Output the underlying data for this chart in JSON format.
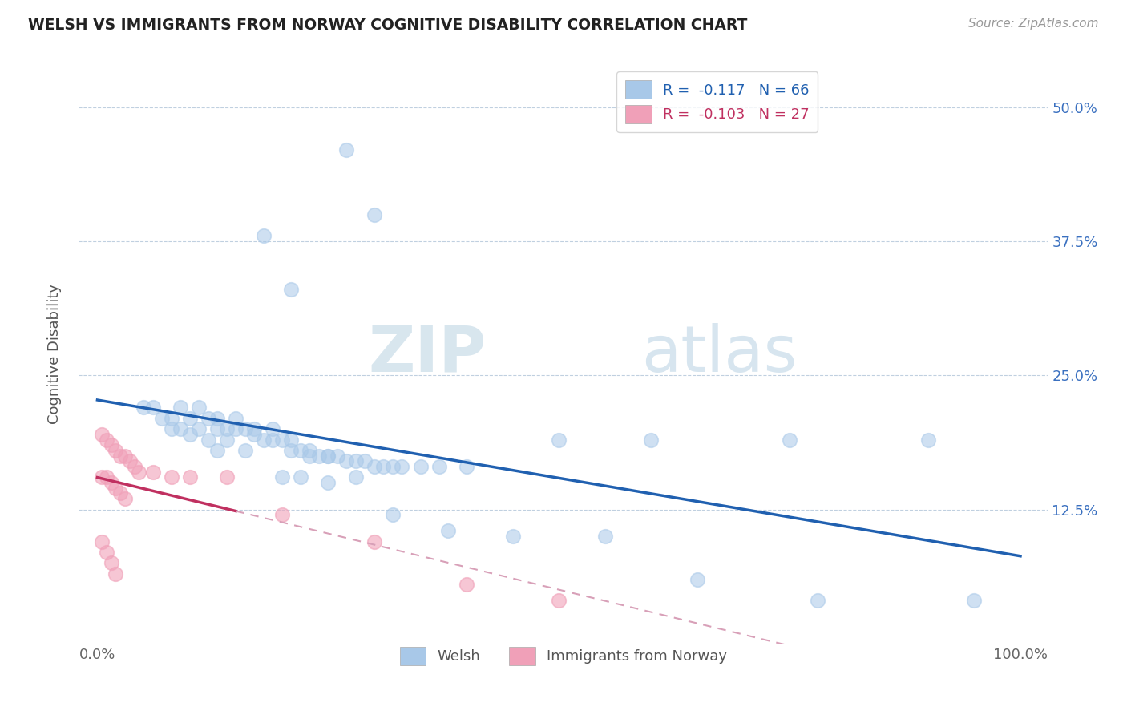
{
  "title": "WELSH VS IMMIGRANTS FROM NORWAY COGNITIVE DISABILITY CORRELATION CHART",
  "source_text": "Source: ZipAtlas.com",
  "ylabel": "Cognitive Disability",
  "y_tick_labels": [
    "12.5%",
    "25.0%",
    "37.5%",
    "50.0%"
  ],
  "y_ticks": [
    0.125,
    0.25,
    0.375,
    0.5
  ],
  "legend_labels": [
    "Welsh",
    "Immigrants from Norway"
  ],
  "welsh_color": "#a8c8e8",
  "norway_color": "#f0a0b8",
  "welsh_line_color": "#2060b0",
  "norway_line_color": "#c03060",
  "norway_dashed_color": "#d8a0b8",
  "welsh_R": -0.117,
  "welsh_N": 66,
  "norway_R": -0.103,
  "norway_N": 27,
  "welsh_x": [
    0.27,
    0.3,
    0.18,
    0.21,
    0.05,
    0.06,
    0.07,
    0.08,
    0.09,
    0.1,
    0.11,
    0.12,
    0.13,
    0.14,
    0.15,
    0.16,
    0.17,
    0.18,
    0.19,
    0.2,
    0.21,
    0.22,
    0.23,
    0.24,
    0.25,
    0.26,
    0.27,
    0.28,
    0.29,
    0.3,
    0.31,
    0.32,
    0.33,
    0.35,
    0.37,
    0.4,
    0.13,
    0.15,
    0.17,
    0.19,
    0.21,
    0.23,
    0.25,
    0.1,
    0.12,
    0.14,
    0.16,
    0.08,
    0.09,
    0.11,
    0.13,
    0.5,
    0.55,
    0.6,
    0.65,
    0.75,
    0.78,
    0.9,
    0.95,
    0.2,
    0.22,
    0.25,
    0.28,
    0.32,
    0.38,
    0.45
  ],
  "welsh_y": [
    0.46,
    0.4,
    0.38,
    0.33,
    0.22,
    0.22,
    0.21,
    0.21,
    0.22,
    0.21,
    0.22,
    0.21,
    0.2,
    0.2,
    0.2,
    0.2,
    0.195,
    0.19,
    0.19,
    0.19,
    0.18,
    0.18,
    0.175,
    0.175,
    0.175,
    0.175,
    0.17,
    0.17,
    0.17,
    0.165,
    0.165,
    0.165,
    0.165,
    0.165,
    0.165,
    0.165,
    0.21,
    0.21,
    0.2,
    0.2,
    0.19,
    0.18,
    0.175,
    0.195,
    0.19,
    0.19,
    0.18,
    0.2,
    0.2,
    0.2,
    0.18,
    0.19,
    0.1,
    0.19,
    0.06,
    0.19,
    0.04,
    0.19,
    0.04,
    0.155,
    0.155,
    0.15,
    0.155,
    0.12,
    0.105,
    0.1
  ],
  "norway_x": [
    0.005,
    0.01,
    0.015,
    0.02,
    0.025,
    0.03,
    0.035,
    0.04,
    0.045,
    0.005,
    0.01,
    0.015,
    0.02,
    0.025,
    0.03,
    0.005,
    0.01,
    0.015,
    0.02,
    0.06,
    0.08,
    0.1,
    0.14,
    0.2,
    0.3,
    0.4,
    0.5
  ],
  "norway_y": [
    0.195,
    0.19,
    0.185,
    0.18,
    0.175,
    0.175,
    0.17,
    0.165,
    0.16,
    0.155,
    0.155,
    0.15,
    0.145,
    0.14,
    0.135,
    0.095,
    0.085,
    0.075,
    0.065,
    0.16,
    0.155,
    0.155,
    0.155,
    0.12,
    0.095,
    0.055,
    0.04
  ],
  "watermark_zip": "ZIP",
  "watermark_atlas": "atlas",
  "background_color": "#ffffff",
  "grid_color": "#c0d0e0",
  "ymin": 0.0,
  "ymax": 0.54,
  "xmin": -0.02,
  "xmax": 1.03
}
